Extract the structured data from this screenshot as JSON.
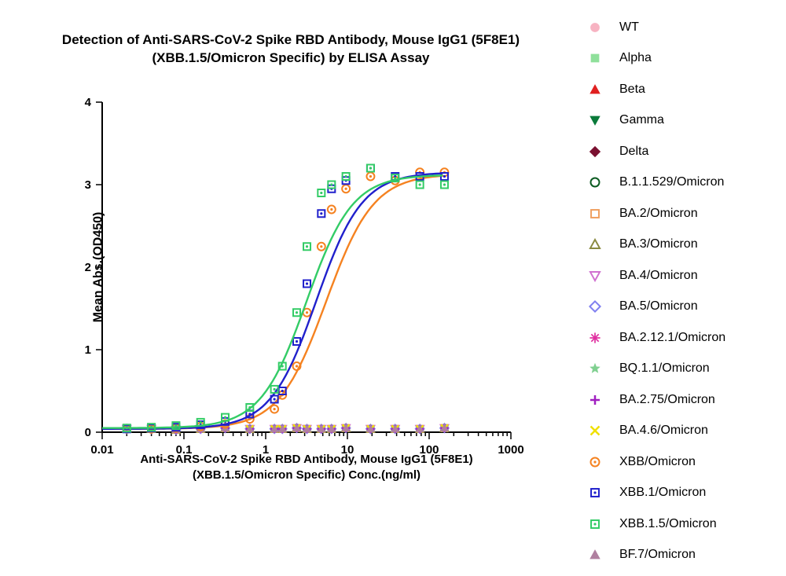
{
  "title_line1": "Detection of  Anti-SARS-CoV-2 Spike RBD Antibody, Mouse IgG1 (5F8E1)",
  "title_line2": "(XBB.1.5/Omicron Specific) by ELISA Assay",
  "ylabel": "Mean Abs.(OD450)",
  "xlabel_line1": "Anti-SARS-CoV-2 Spike RBD Antibody, Mouse IgG1 (5F8E1)",
  "xlabel_line2": "(XBB.1.5/Omicron Specific) Conc.(ng/ml)",
  "chart": {
    "type": "line-scatter-logx",
    "background_color": "#ffffff",
    "axis_color": "#000000",
    "xlim_log10": [
      -2,
      3
    ],
    "ylim": [
      0,
      4
    ],
    "yticks": [
      0,
      1,
      2,
      3,
      4
    ],
    "xticks_log10": [
      -2,
      -1,
      0,
      1,
      2,
      3
    ],
    "xtick_labels": [
      "0.01",
      "0.1",
      "1",
      "10",
      "100",
      "1000"
    ],
    "minor_xticks_log10": [
      -1.699,
      -1.523,
      -1.398,
      -1.301,
      -1.222,
      -1.155,
      -1.097,
      -1.046,
      -0.699,
      -0.523,
      -0.398,
      -0.301,
      -0.222,
      -0.155,
      -0.097,
      -0.046,
      0.301,
      0.477,
      0.602,
      0.699,
      0.778,
      0.845,
      0.903,
      0.954,
      1.301,
      1.477,
      1.602,
      1.699,
      1.778,
      1.845,
      1.903,
      1.954,
      2.301,
      2.477,
      2.602,
      2.699,
      2.778,
      2.845,
      2.903,
      2.954
    ],
    "x_points_log10": [
      -1.699,
      -1.398,
      -1.097,
      -0.796,
      -0.495,
      -0.194,
      0.107,
      0.204,
      0.38,
      0.505,
      0.681,
      0.806,
      0.982,
      1.283,
      1.584,
      1.886,
      2.187
    ],
    "sigmoid_x_log10": [
      -1.699,
      -1.398,
      -1.097,
      -0.796,
      -0.495,
      -0.194,
      0.107,
      0.204,
      0.38,
      0.505,
      0.681,
      0.806,
      0.982,
      1.107,
      1.283,
      1.584,
      1.886,
      2.187
    ],
    "series_flat_y": [
      0.04,
      0.04,
      0.03,
      0.04,
      0.05,
      0.04,
      0.04,
      0.04,
      0.05,
      0.04,
      0.04,
      0.04,
      0.05,
      0.04,
      0.04,
      0.04,
      0.05
    ],
    "sigmoid_curves": {
      "xbb15": {
        "color": "#33cc66",
        "ymin": 0.05,
        "ymax": 3.12,
        "ec50_log10": 0.5,
        "hill": 1.55,
        "points_y": [
          0.05,
          0.06,
          0.08,
          0.12,
          0.18,
          0.3,
          0.52,
          0.8,
          1.45,
          2.25,
          2.9,
          3.0,
          3.1,
          3.2,
          3.08,
          3.0,
          3.0
        ]
      },
      "xbb1": {
        "color": "#2020cc",
        "ymin": 0.04,
        "ymax": 3.15,
        "ec50_log10": 0.62,
        "hill": 1.55,
        "points_y": [
          0.04,
          0.05,
          0.06,
          0.09,
          0.13,
          0.22,
          0.4,
          0.5,
          1.1,
          1.8,
          2.65,
          2.95,
          3.05,
          3.2,
          3.1,
          3.1,
          3.1
        ]
      },
      "xbb": {
        "color": "#f58220",
        "ymin": 0.04,
        "ymax": 3.13,
        "ec50_log10": 0.74,
        "hill": 1.5,
        "points_y": [
          0.04,
          0.04,
          0.05,
          0.07,
          0.1,
          0.16,
          0.28,
          0.45,
          0.8,
          1.45,
          2.25,
          2.7,
          2.95,
          3.1,
          3.05,
          3.15,
          3.15
        ]
      }
    },
    "flat_series_render": [
      {
        "key": "WT",
        "marker": "circle",
        "fill": "#f7b3c2",
        "stroke": "#f7b3c2",
        "open": false
      },
      {
        "key": "Alpha",
        "marker": "square",
        "fill": "#8fe09b",
        "stroke": "#8fe09b",
        "open": false
      },
      {
        "key": "Beta",
        "marker": "triangle-up",
        "fill": "#e02020",
        "stroke": "#e02020",
        "open": false
      },
      {
        "key": "Gamma",
        "marker": "triangle-down",
        "fill": "#0a7a3a",
        "stroke": "#0a7a3a",
        "open": false
      },
      {
        "key": "Delta",
        "marker": "diamond",
        "fill": "#7a1030",
        "stroke": "#7a1030",
        "open": false
      },
      {
        "key": "B1",
        "marker": "circle",
        "fill": "none",
        "stroke": "#0a5a20",
        "open": true
      },
      {
        "key": "BA2",
        "marker": "square",
        "fill": "none",
        "stroke": "#f0a060",
        "open": true
      },
      {
        "key": "BA3",
        "marker": "triangle-up",
        "fill": "none",
        "stroke": "#8a8a40",
        "open": true
      },
      {
        "key": "BA4",
        "marker": "triangle-down",
        "fill": "none",
        "stroke": "#d070d0",
        "open": true
      },
      {
        "key": "BA5",
        "marker": "diamond",
        "fill": "none",
        "stroke": "#8080f0",
        "open": true
      },
      {
        "key": "BA212",
        "marker": "burst",
        "fill": "#e030a0",
        "stroke": "#e030a0",
        "open": false
      },
      {
        "key": "BQ11",
        "marker": "star",
        "fill": "#80d090",
        "stroke": "#80d090",
        "open": false
      },
      {
        "key": "BA275",
        "marker": "plus",
        "fill": "#a020c0",
        "stroke": "#a020c0",
        "open": false
      },
      {
        "key": "BA46",
        "marker": "x",
        "fill": "#f0e000",
        "stroke": "#f0e000",
        "open": false
      },
      {
        "key": "BF7",
        "marker": "triangle-up",
        "fill": "#b080a0",
        "stroke": "#b080a0",
        "open": false
      }
    ],
    "marker_size": 9,
    "line_width": 2.4,
    "label_fontsize": 15,
    "title_fontsize": 17
  },
  "legend": [
    {
      "label": "WT",
      "marker": "circle",
      "fill": "#f7b3c2",
      "stroke": "#f7b3c2",
      "open": false
    },
    {
      "label": "Alpha",
      "marker": "square",
      "fill": "#8fe09b",
      "stroke": "#8fe09b",
      "open": false
    },
    {
      "label": "Beta",
      "marker": "triangle-up",
      "fill": "#e02020",
      "stroke": "#e02020",
      "open": false
    },
    {
      "label": "Gamma",
      "marker": "triangle-down",
      "fill": "#0a7a3a",
      "stroke": "#0a7a3a",
      "open": false
    },
    {
      "label": "Delta",
      "marker": "diamond",
      "fill": "#7a1030",
      "stroke": "#7a1030",
      "open": false
    },
    {
      "label": "B.1.1.529/Omicron",
      "marker": "circle",
      "fill": "none",
      "stroke": "#0a5a20",
      "open": true
    },
    {
      "label": "BA.2/Omicron",
      "marker": "square",
      "fill": "none",
      "stroke": "#f0a060",
      "open": true
    },
    {
      "label": "BA.3/Omicron",
      "marker": "triangle-up",
      "fill": "none",
      "stroke": "#8a8a40",
      "open": true
    },
    {
      "label": "BA.4/Omicron",
      "marker": "triangle-down",
      "fill": "none",
      "stroke": "#d070d0",
      "open": true
    },
    {
      "label": "BA.5/Omicron",
      "marker": "diamond",
      "fill": "none",
      "stroke": "#8080f0",
      "open": true
    },
    {
      "label": "BA.2.12.1/Omicron",
      "marker": "burst",
      "fill": "#e030a0",
      "stroke": "#e030a0",
      "open": false
    },
    {
      "label": "BQ.1.1/Omicron",
      "marker": "star",
      "fill": "#80d090",
      "stroke": "#80d090",
      "open": false
    },
    {
      "label": "BA.2.75/Omicron",
      "marker": "plus",
      "fill": "#a020c0",
      "stroke": "#a020c0",
      "open": false
    },
    {
      "label": "BA.4.6/Omicron",
      "marker": "x",
      "fill": "#f0e000",
      "stroke": "#f0e000",
      "open": false
    },
    {
      "label": "XBB/Omicron",
      "marker": "circle",
      "fill": "none",
      "stroke": "#f58220",
      "open": true,
      "dot": true
    },
    {
      "label": "XBB.1/Omicron",
      "marker": "square",
      "fill": "none",
      "stroke": "#2020cc",
      "open": true,
      "dot": true
    },
    {
      "label": "XBB.1.5/Omicron",
      "marker": "square",
      "fill": "none",
      "stroke": "#33cc66",
      "open": true,
      "dot": true
    },
    {
      "label": "BF.7/Omicron",
      "marker": "triangle-up",
      "fill": "#b080a0",
      "stroke": "#b080a0",
      "open": false
    }
  ]
}
